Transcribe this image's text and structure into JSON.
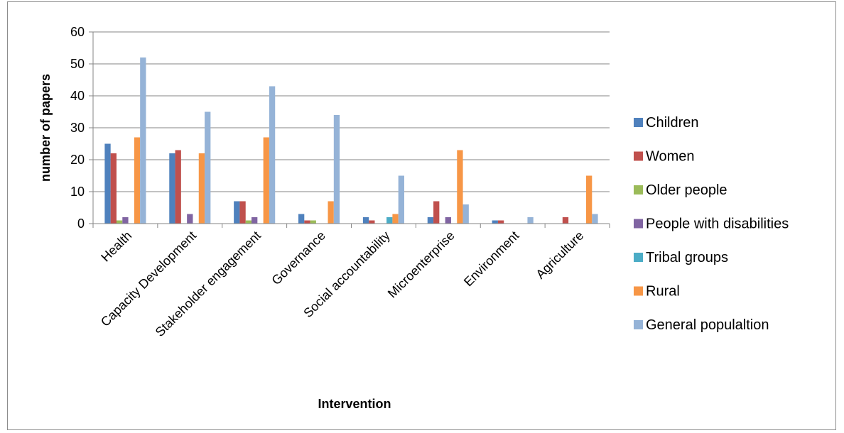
{
  "chart_data": {
    "type": "bar",
    "title": "",
    "xlabel": "Intervention",
    "ylabel": "number of papers",
    "ylim": [
      0,
      60
    ],
    "yticks": [
      0,
      10,
      20,
      30,
      40,
      50,
      60
    ],
    "grid": true,
    "legend_position": "right",
    "categories": [
      "Health",
      "Capacity Development",
      "Stakeholder engagement",
      "Governance",
      "Social accountability",
      "Microenterprise",
      "Environment",
      "Agriculture"
    ],
    "series": [
      {
        "name": "Children",
        "color": "#4F81BD",
        "values": [
          25,
          22,
          7,
          3,
          2,
          2,
          1,
          0
        ]
      },
      {
        "name": "Women",
        "color": "#C0504D",
        "values": [
          22,
          23,
          7,
          1,
          1,
          7,
          1,
          2
        ]
      },
      {
        "name": "Older people",
        "color": "#9BBB59",
        "values": [
          1,
          0,
          1,
          1,
          0,
          0,
          0,
          0
        ]
      },
      {
        "name": "People with disabilities",
        "color": "#8064A2",
        "values": [
          2,
          3,
          2,
          0,
          0,
          2,
          0,
          0
        ]
      },
      {
        "name": "Tribal groups",
        "color": "#4BACC6",
        "values": [
          0,
          0,
          0,
          0,
          2,
          0,
          0,
          0
        ]
      },
      {
        "name": "Rural",
        "color": "#F79646",
        "values": [
          27,
          22,
          27,
          7,
          3,
          23,
          0,
          15
        ]
      },
      {
        "name": "General populaltion",
        "color": "#95B3D7",
        "values": [
          52,
          35,
          43,
          34,
          15,
          6,
          2,
          3
        ]
      }
    ]
  }
}
